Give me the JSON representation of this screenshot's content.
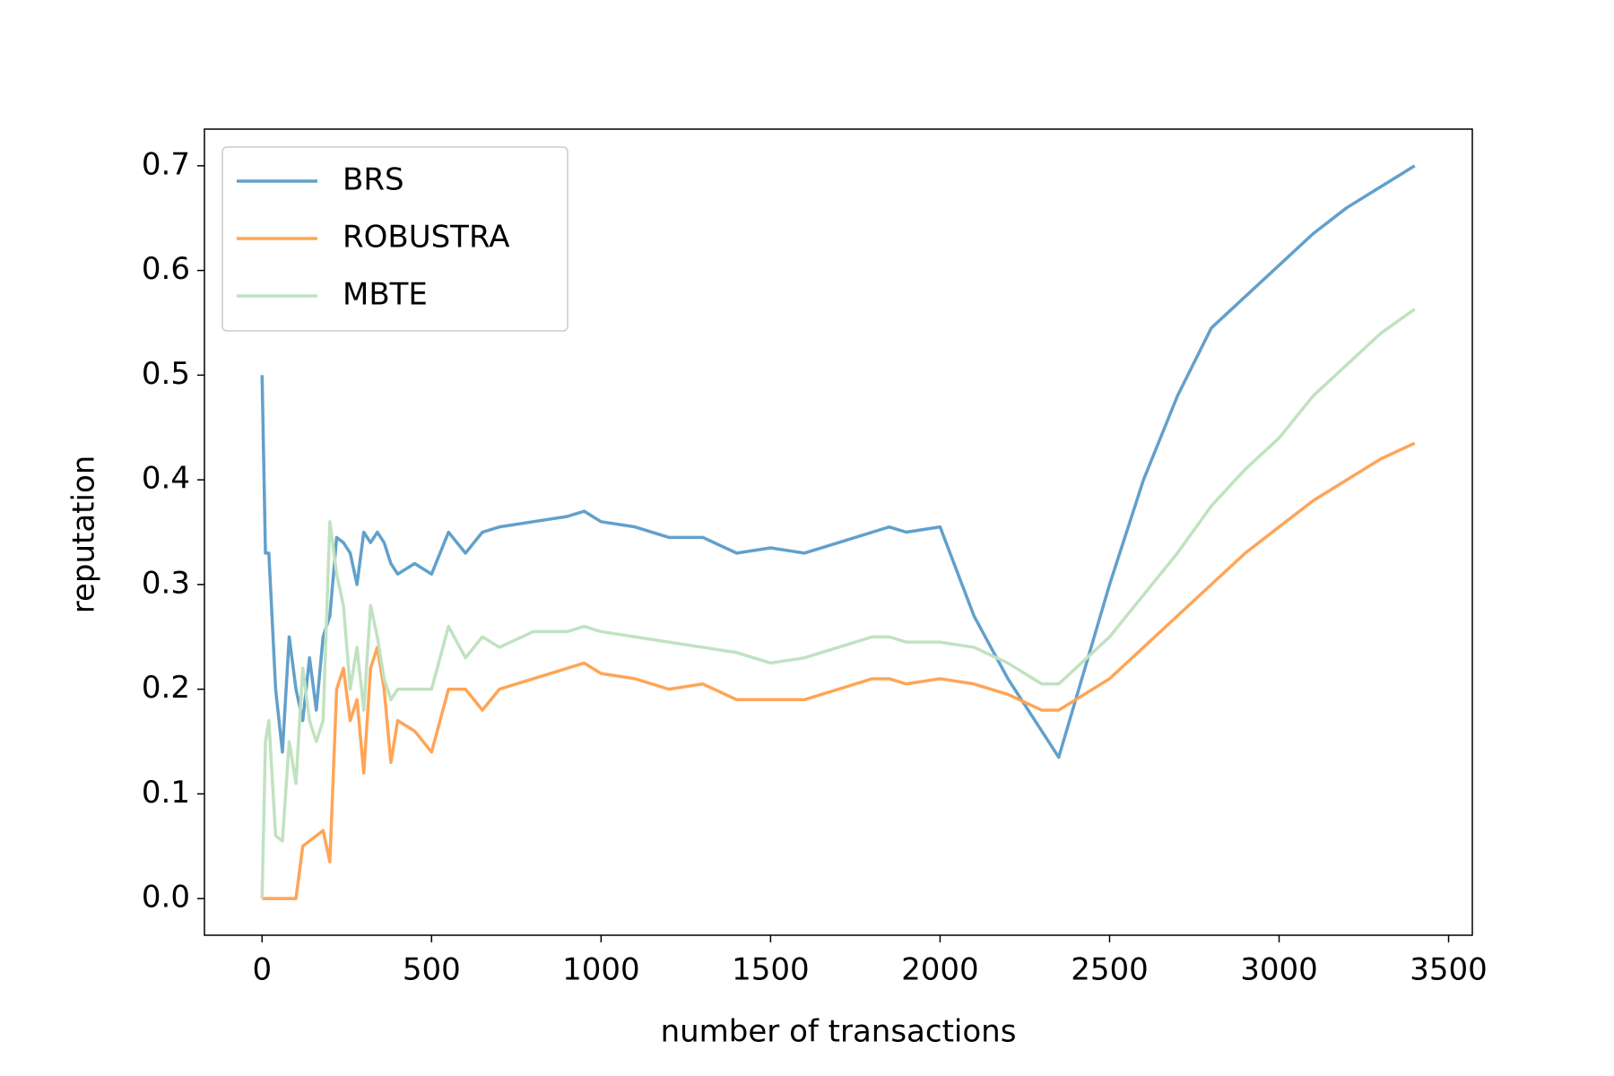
{
  "chart_data": {
    "type": "line",
    "x_label": "number of transactions",
    "y_label": "reputation",
    "x": [
      0,
      10,
      20,
      40,
      60,
      80,
      100,
      120,
      140,
      160,
      180,
      200,
      220,
      240,
      260,
      280,
      300,
      320,
      340,
      360,
      380,
      400,
      450,
      500,
      550,
      600,
      650,
      700,
      800,
      900,
      950,
      1000,
      1100,
      1200,
      1300,
      1400,
      1500,
      1600,
      1700,
      1800,
      1850,
      1900,
      2000,
      2100,
      2200,
      2300,
      2350,
      2400,
      2500,
      2600,
      2700,
      2800,
      2900,
      3000,
      3100,
      3200,
      3300,
      3400
    ],
    "series": [
      {
        "name": "BRS",
        "color": "#62a0cb",
        "values": [
          0.5,
          0.33,
          0.33,
          0.2,
          0.14,
          0.25,
          0.2,
          0.17,
          0.23,
          0.18,
          0.25,
          0.27,
          0.345,
          0.34,
          0.33,
          0.3,
          0.35,
          0.34,
          0.35,
          0.34,
          0.32,
          0.31,
          0.32,
          0.31,
          0.35,
          0.33,
          0.35,
          0.355,
          0.36,
          0.365,
          0.37,
          0.36,
          0.355,
          0.345,
          0.345,
          0.33,
          0.335,
          0.33,
          0.34,
          0.35,
          0.355,
          0.35,
          0.355,
          0.27,
          0.21,
          0.16,
          0.135,
          0.19,
          0.3,
          0.4,
          0.48,
          0.545,
          0.575,
          0.605,
          0.635,
          0.66,
          0.68,
          0.7
        ]
      },
      {
        "name": "ROBUSTRA",
        "color": "#ffa556",
        "values": [
          0,
          0,
          0,
          0,
          0,
          0,
          0,
          0.05,
          0.055,
          0.06,
          0.065,
          0.035,
          0.2,
          0.22,
          0.17,
          0.19,
          0.12,
          0.22,
          0.24,
          0.2,
          0.13,
          0.17,
          0.16,
          0.14,
          0.2,
          0.2,
          0.18,
          0.2,
          0.21,
          0.22,
          0.225,
          0.215,
          0.21,
          0.2,
          0.205,
          0.19,
          0.19,
          0.19,
          0.2,
          0.21,
          0.21,
          0.205,
          0.21,
          0.205,
          0.195,
          0.18,
          0.18,
          0.19,
          0.21,
          0.24,
          0.27,
          0.3,
          0.33,
          0.355,
          0.38,
          0.4,
          0.42,
          0.435
        ]
      },
      {
        "name": "MBTE",
        "color": "#c0e2c0",
        "values": [
          0,
          0.15,
          0.17,
          0.06,
          0.055,
          0.15,
          0.11,
          0.22,
          0.17,
          0.15,
          0.17,
          0.36,
          0.31,
          0.28,
          0.2,
          0.24,
          0.18,
          0.28,
          0.25,
          0.21,
          0.19,
          0.2,
          0.2,
          0.2,
          0.26,
          0.23,
          0.25,
          0.24,
          0.255,
          0.255,
          0.26,
          0.255,
          0.25,
          0.245,
          0.24,
          0.235,
          0.225,
          0.23,
          0.24,
          0.25,
          0.25,
          0.245,
          0.245,
          0.24,
          0.225,
          0.205,
          0.205,
          0.22,
          0.25,
          0.29,
          0.33,
          0.375,
          0.41,
          0.44,
          0.48,
          0.51,
          0.54,
          0.563
        ]
      }
    ],
    "xlim": [
      -170,
      3570
    ],
    "ylim": [
      -0.035,
      0.735
    ],
    "xticks": [
      0,
      500,
      1000,
      1500,
      2000,
      2500,
      3000,
      3500
    ],
    "yticks": [
      {
        "value": 0,
        "label": "0.0"
      },
      0.1,
      0.2,
      0.3,
      0.4,
      0.5,
      0.6,
      0.7
    ],
    "legend": "upper left"
  }
}
